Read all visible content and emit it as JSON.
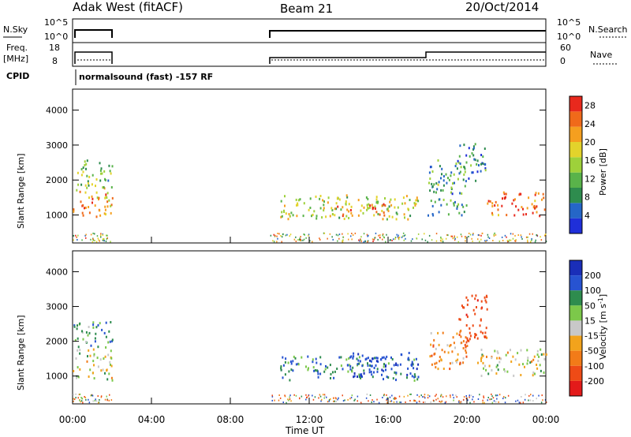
{
  "header": {
    "station": "Adak West (fitACF)",
    "beam": "Beam 21",
    "date": "20/Oct/2014"
  },
  "noise_panel": {
    "left_label": "N.Sky",
    "right_label": "N.Search",
    "left_ticks": [
      "10^5",
      "10^0"
    ],
    "right_ticks": [
      "10^5",
      "10^0"
    ]
  },
  "freq_panel": {
    "left_label_1": "Freq.",
    "left_label_2": "[MHz]",
    "right_label": "Nave",
    "left_ticks": [
      "18",
      "8"
    ],
    "right_ticks": [
      "60",
      "0"
    ]
  },
  "cpid": {
    "label": "CPID",
    "text": "normalsound (fast) -157 RF"
  },
  "colors": {
    "power": [
      "#1f2fd9",
      "#2566c7",
      "#2e8c4e",
      "#59b34a",
      "#9ed13a",
      "#e3d32b",
      "#f59f1f",
      "#f06a1a",
      "#e8291d"
    ],
    "velocity": [
      "#1a2eb8",
      "#2753d1",
      "#2e8c4e",
      "#7cc84a",
      "#c8c8c8",
      "#f2a31c",
      "#f27b18",
      "#ee4b16",
      "#e31a1a"
    ]
  },
  "chart_data": [
    {
      "type": "heatmap",
      "title": "Power",
      "ylabel": "Slant Range [km]",
      "xlabel": "Time UT",
      "xlim": [
        0,
        24
      ],
      "ylim": [
        200,
        4600
      ],
      "x_tick_labels": [
        "00:00",
        "04:00",
        "08:00",
        "12:00",
        "16:00",
        "20:00",
        "00:00"
      ],
      "y_tick_values": [
        1000,
        2000,
        3000,
        4000
      ],
      "colorbar": {
        "label": "Power [dB]",
        "ticks": [
          4,
          8,
          12,
          16,
          20,
          24,
          28
        ],
        "range": [
          0,
          30
        ]
      },
      "scatter_blobs": [
        {
          "t0": 0.0,
          "t1": 2.0,
          "r0": 900,
          "r1": 1800,
          "v": 22
        },
        {
          "t0": 0.0,
          "t1": 2.0,
          "r0": 1800,
          "r1": 2600,
          "v": 12
        },
        {
          "t0": 10.5,
          "t1": 17.5,
          "r0": 900,
          "r1": 1600,
          "v": 16
        },
        {
          "t0": 13.0,
          "t1": 16.0,
          "r0": 1000,
          "r1": 1400,
          "v": 22
        },
        {
          "t0": 18.0,
          "t1": 20.0,
          "r0": 1000,
          "r1": 2600,
          "v": 10
        },
        {
          "t0": 19.5,
          "t1": 21.0,
          "r0": 2000,
          "r1": 3100,
          "v": 8
        },
        {
          "t0": 21.0,
          "t1": 24.0,
          "r0": 1000,
          "r1": 1700,
          "v": 26
        }
      ]
    },
    {
      "type": "heatmap",
      "title": "Velocity",
      "ylabel": "Slant Range [km]",
      "xlabel": "Time UT",
      "xlim": [
        0,
        24
      ],
      "ylim": [
        200,
        4600
      ],
      "x_tick_labels": [
        "00:00",
        "04:00",
        "08:00",
        "12:00",
        "16:00",
        "20:00",
        "00:00"
      ],
      "y_tick_values": [
        1000,
        2000,
        3000,
        4000
      ],
      "colorbar": {
        "label": "Velocity [m s^-1]",
        "ticks": [
          200,
          100,
          50,
          15,
          -15,
          -50,
          -100,
          -200
        ]
      },
      "scatter_blobs": [
        {
          "t0": 0.0,
          "t1": 2.0,
          "r0": 900,
          "r1": 1800,
          "v": 0
        },
        {
          "t0": 0.0,
          "t1": 2.0,
          "r0": 1800,
          "r1": 2600,
          "v": 60
        },
        {
          "t0": 10.5,
          "t1": 17.5,
          "r0": 900,
          "r1": 1600,
          "v": 80
        },
        {
          "t0": 14.0,
          "t1": 17.5,
          "r0": 1000,
          "r1": 1700,
          "v": 180
        },
        {
          "t0": 18.0,
          "t1": 20.0,
          "r0": 1200,
          "r1": 2400,
          "v": -60
        },
        {
          "t0": 19.5,
          "t1": 21.0,
          "r0": 2000,
          "r1": 3400,
          "v": -150
        },
        {
          "t0": 20.5,
          "t1": 24.0,
          "r0": 1000,
          "r1": 1800,
          "v": 0
        }
      ]
    }
  ],
  "xlabel": "Time UT",
  "ylabel": "Slant Range [km]",
  "power_label": "Power [dB]",
  "velocity_label": "Velocity [m s",
  "velocity_label_exp": "-1",
  "velocity_label_end": "]"
}
